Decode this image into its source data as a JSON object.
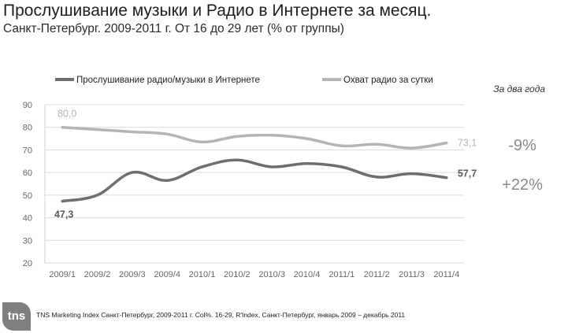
{
  "header": {
    "title": "Прослушивание музыки и Радио в Интернете за месяц.",
    "subtitle": "Санкт-Петербург. 2009-2011 г. От 16 до 29 лет (% от группы)"
  },
  "chart_data": {
    "type": "line",
    "categories": [
      "2009/1",
      "2009/2",
      "2009/3",
      "2009/4",
      "2010/1",
      "2010/2",
      "2010/3",
      "2010/4",
      "2011/1",
      "2011/2",
      "2011/3",
      "2011/4"
    ],
    "ylim": [
      20,
      90
    ],
    "yticks": [
      20,
      30,
      40,
      50,
      60,
      70,
      80,
      90
    ],
    "grid": true,
    "legend_position": "top",
    "series": [
      {
        "name": "Прослушивание радио/музыки в Интернете",
        "color": "#6e6e6e",
        "values": [
          47.3,
          50,
          60,
          56.5,
          62.5,
          65.5,
          62.5,
          64,
          62.5,
          58,
          59.5,
          57.7
        ],
        "start_label": "47,3",
        "end_label": "57,7"
      },
      {
        "name": "Охват радио за сутки",
        "color": "#b4b4b4",
        "values": [
          80.0,
          79,
          78,
          77,
          73.5,
          76,
          76.5,
          75,
          71.8,
          72.5,
          70.8,
          73.1
        ],
        "start_label": "80,0",
        "end_label": "73,1"
      }
    ],
    "changes": {
      "period_label": "За два года",
      "light_series": "-9%",
      "dark_series": "+22%"
    }
  },
  "footer": {
    "logo_text": "tns",
    "source": "TNS Marketing Index Санкт-Петербург, 2009-2011 г. Col%. 16-29, R'Index, Санкт-Петербург, январь 2009 – декабрь 2011"
  }
}
